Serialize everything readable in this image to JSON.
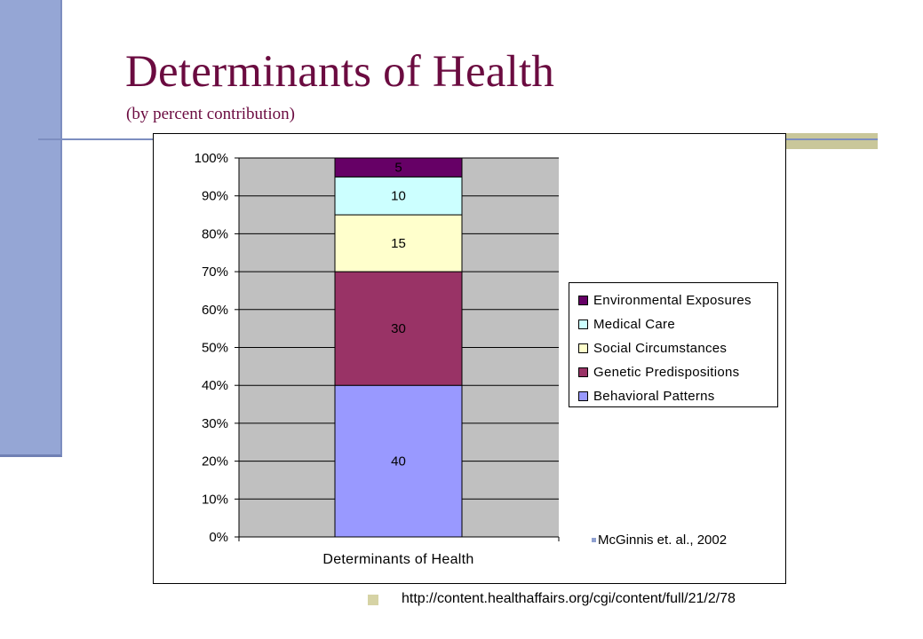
{
  "slide": {
    "title": "Determinants of Health",
    "subtitle": "(by percent contribution)",
    "citation": "McGinnis et. al., 2002",
    "footer_link": "http://content.healthaffairs.org/cgi/content/full/21/2/78"
  },
  "colors": {
    "title": "#6b0b40",
    "left_bar": "#95a6d5",
    "plot_area": "#c0c0c0",
    "footer_bullet": "#d6d3a5"
  },
  "chart_data": {
    "type": "bar",
    "stacked": true,
    "percent_scale": true,
    "categories": [
      "Determinants of Health"
    ],
    "xlabel": "Determinants of Health",
    "ylabel": "",
    "ylim": [
      0,
      100
    ],
    "y_ticks": [
      "0%",
      "10%",
      "20%",
      "30%",
      "40%",
      "50%",
      "60%",
      "70%",
      "80%",
      "90%",
      "100%"
    ],
    "grid": true,
    "legend_position": "right",
    "series": [
      {
        "name": "Behavioral Patterns",
        "values": [
          40
        ],
        "color": "#9999ff"
      },
      {
        "name": "Genetic Predispositions",
        "values": [
          30
        ],
        "color": "#993366"
      },
      {
        "name": "Social Circumstances",
        "values": [
          15
        ],
        "color": "#ffffcc"
      },
      {
        "name": "Medical Care",
        "values": [
          10
        ],
        "color": "#ccffff"
      },
      {
        "name": "Environmental Exposures",
        "values": [
          5
        ],
        "color": "#660066"
      }
    ]
  }
}
